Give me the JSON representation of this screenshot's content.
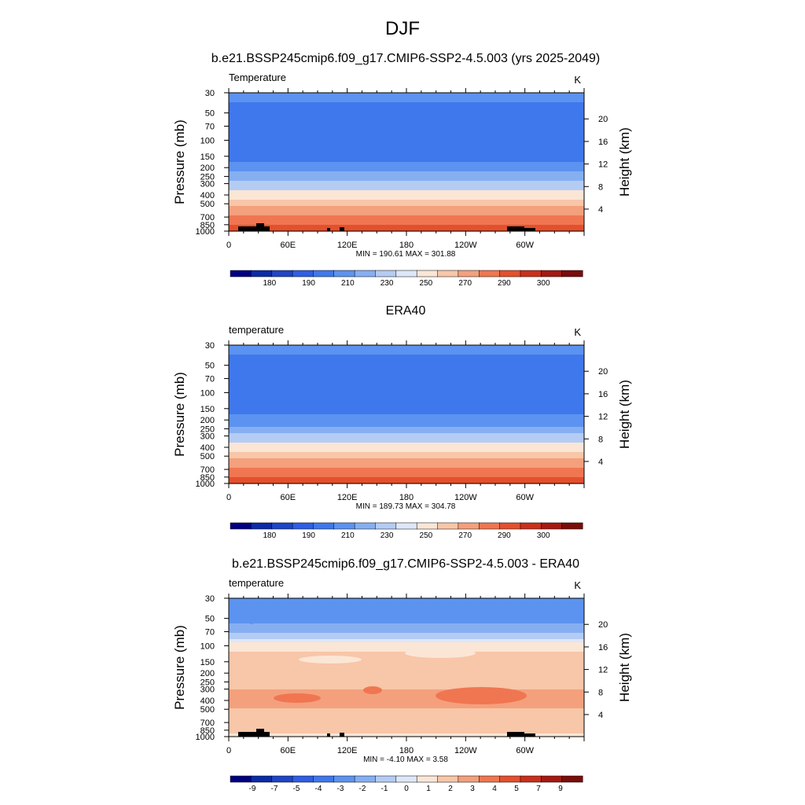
{
  "figure": {
    "title": "DJF"
  },
  "chart_data": [
    {
      "type": "heatmap",
      "title": "b.e21.BSSP245cmip6.f09_g17.CMIP6-SSP2-4.5.003 (yrs 2025-2049)",
      "variable_label": "Temperature",
      "units": "K",
      "ylabel": "Pressure (mb)",
      "y2label": "Height (km)",
      "x_ticks": [
        "0",
        "60E",
        "120E",
        "180",
        "120W",
        "60W"
      ],
      "y_ticks": [
        "30",
        "50",
        "70",
        "100",
        "150",
        "200",
        "250",
        "300",
        "400",
        "500",
        "700",
        "850",
        "1000"
      ],
      "y2_ticks": [
        "20",
        "16",
        "12",
        "8",
        "4"
      ],
      "stats": "MIN = 190.61   MAX = 301.88",
      "min": 190.61,
      "max": 301.88,
      "levels": [
        175,
        180,
        185,
        190,
        200,
        210,
        220,
        230,
        240,
        250,
        260,
        270,
        280,
        290,
        295,
        300,
        305
      ],
      "colorbar_labels": [
        "180",
        "190",
        "210",
        "230",
        "250",
        "270",
        "290",
        "300"
      ],
      "profile": [
        {
          "pressure": 30,
          "value": 214
        },
        {
          "pressure": 50,
          "value": 206
        },
        {
          "pressure": 70,
          "value": 201
        },
        {
          "pressure": 100,
          "value": 200
        },
        {
          "pressure": 150,
          "value": 207
        },
        {
          "pressure": 200,
          "value": 214
        },
        {
          "pressure": 250,
          "value": 224
        },
        {
          "pressure": 300,
          "value": 233
        },
        {
          "pressure": 400,
          "value": 246
        },
        {
          "pressure": 500,
          "value": 256
        },
        {
          "pressure": 700,
          "value": 272
        },
        {
          "pressure": 850,
          "value": 281
        },
        {
          "pressure": 1000,
          "value": 289
        }
      ],
      "colorbar": [
        "#000080",
        "#0d2aa6",
        "#1f45c6",
        "#2f5ee4",
        "#3f78ec",
        "#5c93f0",
        "#86aff2",
        "#b4ccf4",
        "#dde7f7",
        "#fbe6d6",
        "#f8c6a8",
        "#f4a07d",
        "#ef7651",
        "#e4502d",
        "#c9301c",
        "#a51a12",
        "#7a0d0b"
      ],
      "bar_colorbar_note": ""
    },
    {
      "type": "heatmap",
      "title": "ERA40",
      "variable_label": "temperature",
      "units": "K",
      "ylabel": "Pressure (mb)",
      "y2label": "Height (km)",
      "x_ticks": [
        "0",
        "60E",
        "120E",
        "180",
        "120W",
        "60W"
      ],
      "y_ticks": [
        "30",
        "50",
        "70",
        "100",
        "150",
        "200",
        "250",
        "300",
        "400",
        "500",
        "700",
        "850",
        "1000"
      ],
      "y2_ticks": [
        "20",
        "16",
        "12",
        "8",
        "4"
      ],
      "stats": "MIN = 189.73   MAX = 304.78",
      "min": 189.73,
      "max": 304.78,
      "levels": [
        175,
        180,
        185,
        190,
        200,
        210,
        220,
        230,
        240,
        250,
        260,
        270,
        280,
        290,
        295,
        300,
        305
      ],
      "colorbar_labels": [
        "180",
        "190",
        "210",
        "230",
        "250",
        "270",
        "290",
        "300"
      ],
      "profile": [
        {
          "pressure": 30,
          "value": 213
        },
        {
          "pressure": 50,
          "value": 207
        },
        {
          "pressure": 70,
          "value": 202
        },
        {
          "pressure": 100,
          "value": 200
        },
        {
          "pressure": 150,
          "value": 206
        },
        {
          "pressure": 200,
          "value": 213
        },
        {
          "pressure": 250,
          "value": 223
        },
        {
          "pressure": 300,
          "value": 233
        },
        {
          "pressure": 400,
          "value": 246
        },
        {
          "pressure": 500,
          "value": 256
        },
        {
          "pressure": 700,
          "value": 271
        },
        {
          "pressure": 850,
          "value": 281
        },
        {
          "pressure": 1000,
          "value": 288
        }
      ],
      "colorbar": [
        "#000080",
        "#0d2aa6",
        "#1f45c6",
        "#2f5ee4",
        "#3f78ec",
        "#5c93f0",
        "#86aff2",
        "#b4ccf4",
        "#dde7f7",
        "#fbe6d6",
        "#f8c6a8",
        "#f4a07d",
        "#ef7651",
        "#e4502d",
        "#c9301c",
        "#a51a12",
        "#7a0d0b"
      ]
    },
    {
      "type": "heatmap",
      "title": "b.e21.BSSP245cmip6.f09_g17.CMIP6-SSP2-4.5.003 - ERA40",
      "variable_label": "temperature",
      "units": "K",
      "ylabel": "Pressure (mb)",
      "y2label": "Height (km)",
      "x_ticks": [
        "0",
        "60E",
        "120E",
        "180",
        "120W",
        "60W"
      ],
      "y_ticks": [
        "30",
        "50",
        "70",
        "100",
        "150",
        "200",
        "250",
        "300",
        "400",
        "500",
        "700",
        "850",
        "1000"
      ],
      "y2_ticks": [
        "20",
        "16",
        "12",
        "8",
        "4"
      ],
      "stats": "MIN =  -4.10   MAX =   3.58",
      "min": -4.1,
      "max": 3.58,
      "levels": [
        -10,
        -9,
        -8,
        -7,
        -5,
        -4,
        -3,
        -2,
        -1,
        0,
        1,
        2,
        3,
        4,
        5,
        7,
        9,
        10
      ],
      "colorbar_labels": [
        "-9",
        "-7",
        "-5",
        "-4",
        "-3",
        "-2",
        "-1",
        "0",
        "1",
        "2",
        "3",
        "4",
        "5",
        "7",
        "9"
      ],
      "profile": [
        {
          "pressure": 30,
          "value": -3.6
        },
        {
          "pressure": 50,
          "value": -3.4
        },
        {
          "pressure": 70,
          "value": -2.5
        },
        {
          "pressure": 100,
          "value": 0.6
        },
        {
          "pressure": 150,
          "value": 1.5
        },
        {
          "pressure": 200,
          "value": 1.6
        },
        {
          "pressure": 250,
          "value": 1.8
        },
        {
          "pressure": 300,
          "value": 2.0
        },
        {
          "pressure": 400,
          "value": 2.3
        },
        {
          "pressure": 500,
          "value": 1.9
        },
        {
          "pressure": 700,
          "value": 1.6
        },
        {
          "pressure": 850,
          "value": 1.2
        },
        {
          "pressure": 1000,
          "value": 0.5
        }
      ],
      "colorbar": [
        "#000080",
        "#0d2aa6",
        "#1f45c6",
        "#2f5ee4",
        "#3f78ec",
        "#5c93f0",
        "#86aff2",
        "#b4ccf4",
        "#dde7f7",
        "#fbe6d6",
        "#f8c6a8",
        "#f4a07d",
        "#ef7651",
        "#e4502d",
        "#c9301c",
        "#a51a12",
        "#7a0d0b"
      ]
    }
  ]
}
